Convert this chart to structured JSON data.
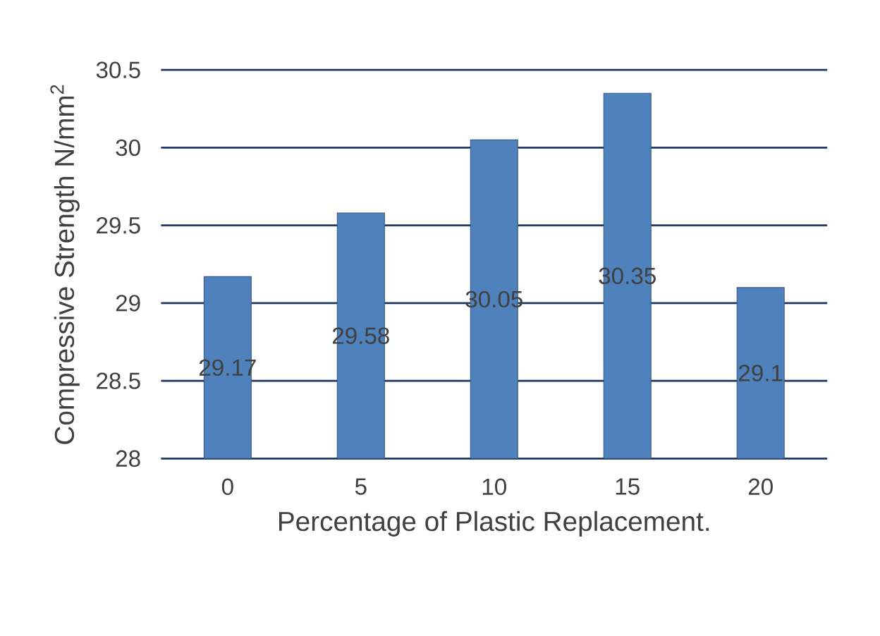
{
  "chart_data": {
    "type": "bar",
    "xlabel": "Percentage of Plastic Replacement.",
    "ylabel": "Compressive Strength N/mm$^{2}$",
    "categories": [
      "0",
      "5",
      "10",
      "15",
      "20"
    ],
    "values": [
      29.17,
      29.58,
      30.05,
      30.35,
      29.1
    ],
    "color": "#4f81bd",
    "ylim": [
      28,
      30.5
    ],
    "yticks": [
      28,
      28.5,
      29,
      29.5,
      30,
      30.5
    ],
    "grid": "y",
    "data_labels": true
  }
}
